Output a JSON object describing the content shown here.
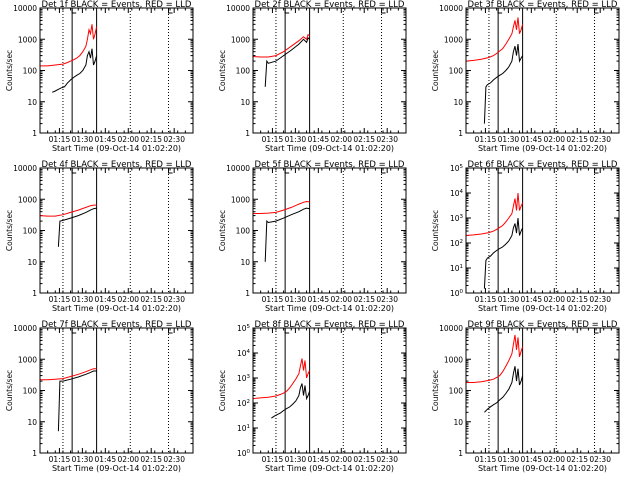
{
  "figure": {
    "xaxis_label": "Start Time (09-Oct-14 01:02:20)",
    "yaxis_label": "Counts/sec",
    "line_colors": {
      "events": "#000000",
      "lld": "#ff0000",
      "axes": "#000000"
    }
  },
  "chart_data": [
    {
      "type": "line",
      "title": "Det 1f BLACK = Events, RED = LLD",
      "xlabel": "Start Time (09-Oct-14 01:02:20)",
      "ylabel": "Counts/sec",
      "x_ticks": [
        "01:15",
        "01:30",
        "01:45",
        "02:00",
        "02:15",
        "02:30"
      ],
      "y_ticks": [
        "1",
        "10",
        "100",
        "1000",
        "10000"
      ],
      "y_log": true,
      "ylim": [
        1,
        10000
      ],
      "xlim_minutes": [
        0,
        100
      ],
      "dotted_vlines_minutes": [
        15,
        59,
        84
      ],
      "solid_vlines_minutes": [
        21,
        37
      ],
      "markers_at_top": [
        "01:30",
        "02:30"
      ],
      "series": [
        {
          "name": "LLD",
          "x_minutes": [
            0,
            5,
            10,
            15,
            18,
            20,
            22,
            24,
            26,
            28,
            30,
            31,
            32,
            33,
            34,
            35,
            36,
            37
          ],
          "values": [
            140,
            140,
            150,
            160,
            180,
            200,
            220,
            250,
            300,
            400,
            600,
            1000,
            2000,
            1500,
            3000,
            1000,
            1500,
            2500
          ]
        },
        {
          "name": "Events",
          "x_minutes": [
            8,
            10,
            12,
            14,
            16,
            18,
            20,
            22,
            24,
            26,
            28,
            30,
            31,
            32,
            33,
            34,
            35,
            36,
            37
          ],
          "values": [
            20,
            22,
            25,
            28,
            30,
            40,
            50,
            60,
            70,
            80,
            100,
            150,
            300,
            400,
            250,
            500,
            150,
            200,
            300
          ]
        }
      ]
    },
    {
      "type": "line",
      "title": "Det 2f BLACK = Events, RED = LLD",
      "xlabel": "Start Time (09-Oct-14 01:02:20)",
      "ylabel": "Counts/sec",
      "x_ticks": [
        "01:15",
        "01:30",
        "01:45",
        "02:00",
        "02:15",
        "02:30"
      ],
      "y_ticks": [
        "1",
        "10",
        "100",
        "1000",
        "10000"
      ],
      "y_log": true,
      "ylim": [
        1,
        10000
      ],
      "xlim_minutes": [
        0,
        100
      ],
      "dotted_vlines_minutes": [
        15,
        59,
        84
      ],
      "solid_vlines_minutes": [
        21,
        37
      ],
      "markers_at_top": [
        "01:30",
        "02:30"
      ],
      "series": [
        {
          "name": "LLD",
          "x_minutes": [
            0,
            5,
            10,
            15,
            20,
            25,
            30,
            33,
            35,
            36,
            37
          ],
          "values": [
            280,
            270,
            270,
            300,
            400,
            600,
            900,
            1200,
            1000,
            1400,
            1300
          ]
        },
        {
          "name": "Events",
          "x_minutes": [
            8,
            9,
            10,
            15,
            20,
            25,
            30,
            33,
            35,
            36,
            37
          ],
          "values": [
            30,
            200,
            170,
            200,
            300,
            450,
            700,
            1000,
            800,
            1100,
            1000
          ]
        }
      ]
    },
    {
      "type": "line",
      "title": "Det 3f BLACK = Events, RED = LLD",
      "xlabel": "Start Time (09-Oct-14 01:02:20)",
      "ylabel": "Counts/sec",
      "x_ticks": [
        "01:15",
        "01:30",
        "01:45",
        "02:00",
        "02:15",
        "02:30"
      ],
      "y_ticks": [
        "1",
        "10",
        "100",
        "1000",
        "10000"
      ],
      "y_log": true,
      "ylim": [
        1,
        10000
      ],
      "xlim_minutes": [
        0,
        100
      ],
      "dotted_vlines_minutes": [
        15,
        59,
        84
      ],
      "solid_vlines_minutes": [
        21,
        37
      ],
      "markers_at_top": [
        "01:30",
        "02:30"
      ],
      "series": [
        {
          "name": "LLD",
          "x_minutes": [
            0,
            5,
            10,
            15,
            18,
            20,
            22,
            24,
            26,
            28,
            30,
            31,
            32,
            33,
            34,
            35,
            36,
            37
          ],
          "values": [
            200,
            210,
            230,
            260,
            300,
            350,
            420,
            500,
            700,
            1000,
            1500,
            2500,
            4000,
            2000,
            5000,
            1500,
            2000,
            3000
          ]
        },
        {
          "name": "Events",
          "x_minutes": [
            12,
            13,
            14,
            16,
            18,
            20,
            22,
            24,
            26,
            28,
            30,
            31,
            32,
            33,
            34,
            35,
            36,
            37
          ],
          "values": [
            2,
            30,
            35,
            40,
            50,
            60,
            70,
            80,
            100,
            130,
            200,
            400,
            600,
            300,
            700,
            200,
            250,
            300
          ]
        }
      ]
    },
    {
      "type": "line",
      "title": "Det 4f BLACK = Events, RED = LLD",
      "xlabel": "Start Time (09-Oct-14 01:02:20)",
      "ylabel": "Counts/sec",
      "x_ticks": [
        "01:15",
        "01:30",
        "01:45",
        "02:00",
        "02:15",
        "02:30"
      ],
      "y_ticks": [
        "1",
        "10",
        "100",
        "1000",
        "10000"
      ],
      "y_log": true,
      "ylim": [
        1,
        10000
      ],
      "xlim_minutes": [
        0,
        100
      ],
      "dotted_vlines_minutes": [
        15,
        59,
        84
      ],
      "solid_vlines_minutes": [
        21,
        37
      ],
      "markers_at_top": [
        "01:30",
        "02:30"
      ],
      "series": [
        {
          "name": "LLD",
          "x_minutes": [
            0,
            5,
            10,
            15,
            20,
            25,
            30,
            33,
            35,
            37
          ],
          "values": [
            300,
            290,
            290,
            320,
            380,
            450,
            550,
            620,
            650,
            650
          ]
        },
        {
          "name": "Events",
          "x_minutes": [
            12,
            13,
            15,
            20,
            25,
            30,
            33,
            35,
            37
          ],
          "values": [
            30,
            200,
            210,
            250,
            300,
            380,
            450,
            500,
            520
          ]
        }
      ]
    },
    {
      "type": "line",
      "title": "Det 5f BLACK = Events, RED = LLD",
      "xlabel": "Start Time (09-Oct-14 01:02:20)",
      "ylabel": "Counts/sec",
      "x_ticks": [
        "01:15",
        "01:30",
        "01:45",
        "02:00",
        "02:15",
        "02:30"
      ],
      "y_ticks": [
        "1",
        "10",
        "100",
        "1000",
        "10000"
      ],
      "y_log": true,
      "ylim": [
        1,
        10000
      ],
      "xlim_minutes": [
        0,
        100
      ],
      "dotted_vlines_minutes": [
        15,
        59,
        84
      ],
      "solid_vlines_minutes": [
        21,
        37
      ],
      "markers_at_top": [
        "01:30",
        "02:30"
      ],
      "series": [
        {
          "name": "LLD",
          "x_minutes": [
            0,
            5,
            10,
            15,
            20,
            25,
            30,
            33,
            35,
            37
          ],
          "values": [
            350,
            350,
            360,
            380,
            450,
            550,
            700,
            800,
            850,
            820
          ]
        },
        {
          "name": "Events",
          "x_minutes": [
            8,
            9,
            10,
            15,
            20,
            25,
            30,
            33,
            35,
            37
          ],
          "values": [
            10,
            200,
            180,
            200,
            250,
            320,
            400,
            480,
            520,
            500
          ]
        }
      ]
    },
    {
      "type": "line",
      "title": "Det 6f BLACK = Events, RED = LLD",
      "xlabel": "Start Time (09-Oct-14 01:02:20)",
      "ylabel": "Counts/sec",
      "x_ticks": [
        "01:15",
        "01:30",
        "01:45",
        "02:00",
        "02:15",
        "02:30"
      ],
      "y_ticks": [
        "10^0",
        "10^1",
        "10^2",
        "10^3",
        "10^4",
        "10^5"
      ],
      "y_log": true,
      "ylim": [
        1,
        100000
      ],
      "xlim_minutes": [
        0,
        100
      ],
      "dotted_vlines_minutes": [
        15,
        59,
        84
      ],
      "solid_vlines_minutes": [
        21,
        37
      ],
      "markers_at_top": [
        "01:30",
        "02:30"
      ],
      "series": [
        {
          "name": "LLD",
          "x_minutes": [
            0,
            5,
            10,
            15,
            18,
            20,
            22,
            24,
            26,
            28,
            30,
            31,
            32,
            33,
            34,
            35,
            36,
            37
          ],
          "values": [
            200,
            210,
            230,
            260,
            300,
            350,
            420,
            500,
            700,
            1000,
            1500,
            3000,
            6000,
            2000,
            10000,
            2000,
            3000,
            4000
          ]
        },
        {
          "name": "Events",
          "x_minutes": [
            12,
            13,
            14,
            16,
            18,
            20,
            22,
            24,
            26,
            28,
            30,
            31,
            32,
            33,
            34,
            35,
            36,
            37
          ],
          "values": [
            1.5,
            20,
            25,
            30,
            40,
            50,
            60,
            70,
            90,
            120,
            200,
            400,
            600,
            250,
            1000,
            200,
            300,
            400
          ]
        }
      ]
    },
    {
      "type": "line",
      "title": "Det 7f BLACK = Events, RED = LLD",
      "xlabel": "Start Time (09-Oct-14 01:02:20)",
      "ylabel": "Counts/sec",
      "x_ticks": [
        "01:15",
        "01:30",
        "01:45",
        "02:00",
        "02:15",
        "02:30"
      ],
      "y_ticks": [
        "1",
        "10",
        "100",
        "1000",
        "10000"
      ],
      "y_log": true,
      "ylim": [
        1,
        10000
      ],
      "xlim_minutes": [
        0,
        100
      ],
      "dotted_vlines_minutes": [
        15,
        59,
        84
      ],
      "solid_vlines_minutes": [
        21,
        37
      ],
      "markers_at_top": [
        "01:30",
        "02:30"
      ],
      "series": [
        {
          "name": "LLD",
          "x_minutes": [
            0,
            5,
            10,
            15,
            20,
            25,
            30,
            33,
            35,
            37
          ],
          "values": [
            220,
            220,
            230,
            240,
            280,
            330,
            400,
            460,
            500,
            500
          ]
        },
        {
          "name": "Events",
          "x_minutes": [
            12,
            13,
            15,
            20,
            25,
            30,
            33,
            35,
            37
          ],
          "values": [
            5,
            200,
            200,
            230,
            270,
            330,
            380,
            420,
            420
          ]
        }
      ]
    },
    {
      "type": "line",
      "title": "Det 8f BLACK = Events, RED = LLD",
      "xlabel": "Start Time (09-Oct-14 01:02:20)",
      "ylabel": "Counts/sec",
      "x_ticks": [
        "01:15",
        "01:30",
        "01:45",
        "02:00",
        "02:15",
        "02:30"
      ],
      "y_ticks": [
        "10^0",
        "10^1",
        "10^2",
        "10^3",
        "10^4",
        "10^5"
      ],
      "y_log": true,
      "ylim": [
        1,
        100000
      ],
      "xlim_minutes": [
        0,
        100
      ],
      "dotted_vlines_minutes": [
        15,
        59,
        84
      ],
      "solid_vlines_minutes": [
        21,
        37
      ],
      "markers_at_top": [
        "01:30",
        "02:30"
      ],
      "series": [
        {
          "name": "LLD",
          "x_minutes": [
            0,
            5,
            10,
            15,
            18,
            20,
            22,
            24,
            26,
            28,
            30,
            31,
            32,
            33,
            34,
            35,
            36,
            37
          ],
          "values": [
            150,
            160,
            170,
            190,
            220,
            250,
            300,
            400,
            600,
            900,
            1500,
            3000,
            6000,
            2000,
            5000,
            1000,
            1500,
            2000
          ]
        },
        {
          "name": "Events",
          "x_minutes": [
            12,
            14,
            16,
            18,
            20,
            22,
            24,
            26,
            28,
            30,
            31,
            32,
            33,
            34,
            35,
            36,
            37
          ],
          "values": [
            25,
            30,
            35,
            40,
            50,
            60,
            70,
            90,
            120,
            200,
            400,
            600,
            200,
            500,
            150,
            200,
            300
          ]
        }
      ]
    },
    {
      "type": "line",
      "title": "Det 9f BLACK = Events, RED = LLD",
      "xlabel": "Start Time (09-Oct-14 01:02:20)",
      "ylabel": "Counts/sec",
      "x_ticks": [
        "01:15",
        "01:30",
        "01:45",
        "02:00",
        "02:15",
        "02:30"
      ],
      "y_ticks": [
        "1",
        "10",
        "100",
        "1000",
        "10000"
      ],
      "y_log": true,
      "ylim": [
        1,
        10000
      ],
      "xlim_minutes": [
        0,
        100
      ],
      "dotted_vlines_minutes": [
        15,
        59,
        84
      ],
      "solid_vlines_minutes": [
        21,
        37
      ],
      "markers_at_top": [
        "01:30",
        "02:30"
      ],
      "series": [
        {
          "name": "LLD",
          "x_minutes": [
            0,
            5,
            10,
            15,
            18,
            20,
            22,
            24,
            26,
            28,
            30,
            31,
            32,
            33,
            34,
            35,
            36,
            37
          ],
          "values": [
            180,
            180,
            190,
            210,
            230,
            260,
            300,
            400,
            600,
            900,
            1500,
            3000,
            6000,
            2000,
            5000,
            1200,
            1800,
            2500
          ]
        },
        {
          "name": "Events",
          "x_minutes": [
            12,
            14,
            16,
            18,
            20,
            22,
            24,
            26,
            28,
            30,
            31,
            32,
            33,
            34,
            35,
            36,
            37
          ],
          "values": [
            20,
            25,
            30,
            35,
            40,
            50,
            60,
            80,
            110,
            180,
            350,
            600,
            200,
            500,
            150,
            200,
            300
          ]
        }
      ]
    }
  ]
}
